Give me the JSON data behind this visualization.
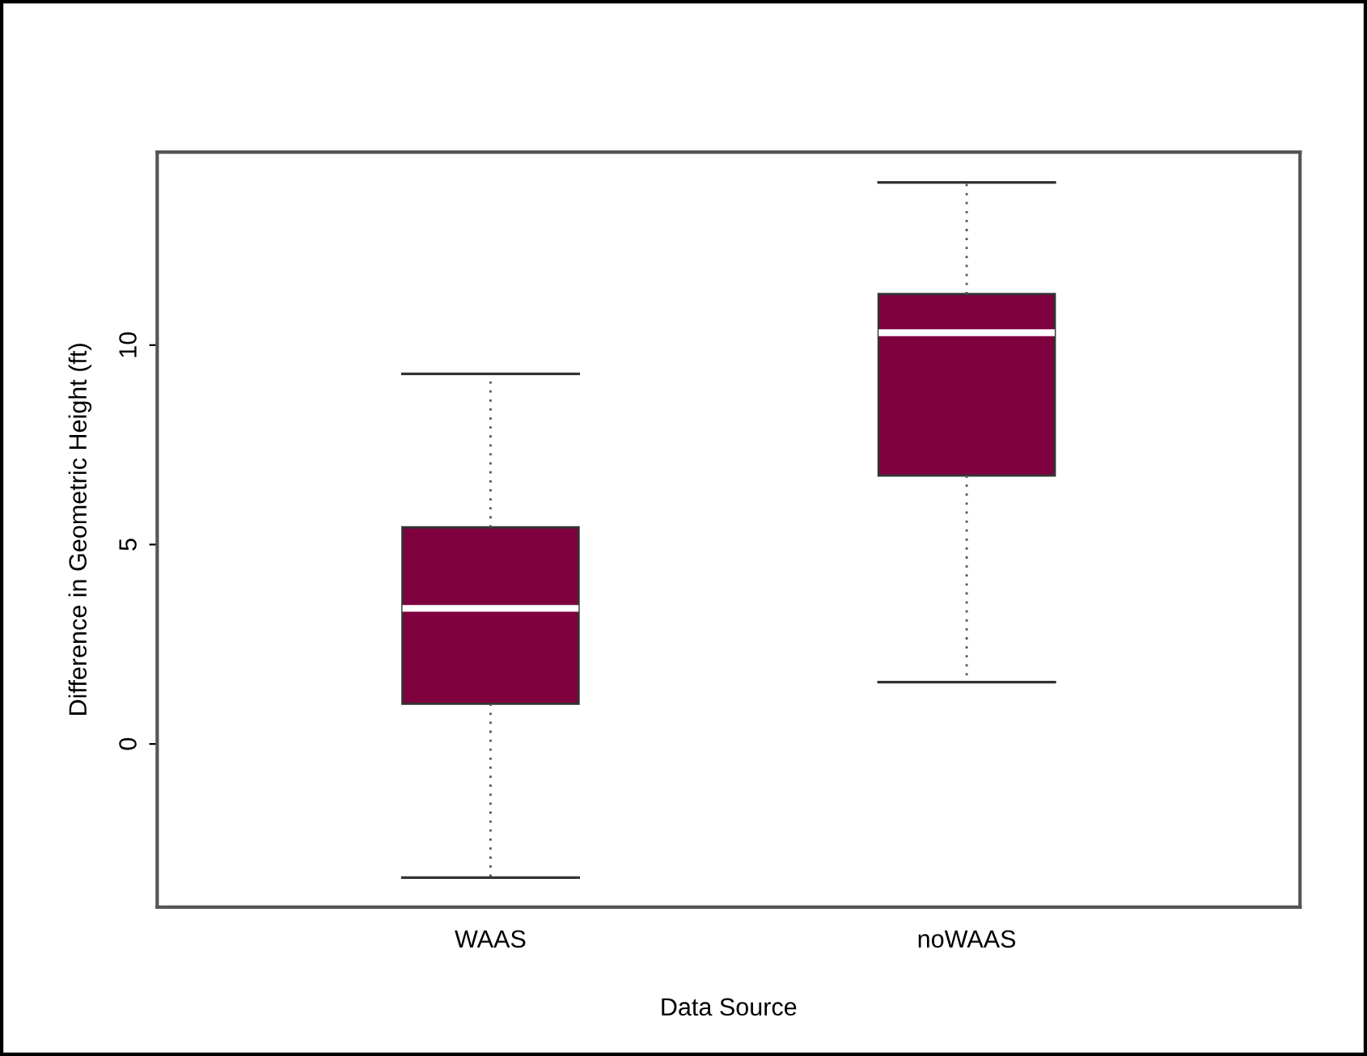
{
  "chart_data": {
    "type": "box",
    "xlabel": "Data Source",
    "ylabel": "Difference in Geometric Height (ft)",
    "categories": [
      "WAAS",
      "noWAAS"
    ],
    "color": "#7f003f",
    "boxes": [
      {
        "low": -3.35,
        "q1": 1.01,
        "median": 3.4,
        "q3": 5.43,
        "high": 9.28
      },
      {
        "low": 1.55,
        "q1": 6.73,
        "median": 10.31,
        "q3": 11.28,
        "high": 14.08
      }
    ],
    "ylim": [
      -4.09,
      14.84
    ],
    "yticks": [
      0,
      5,
      10
    ],
    "grid": false,
    "legend": false
  }
}
